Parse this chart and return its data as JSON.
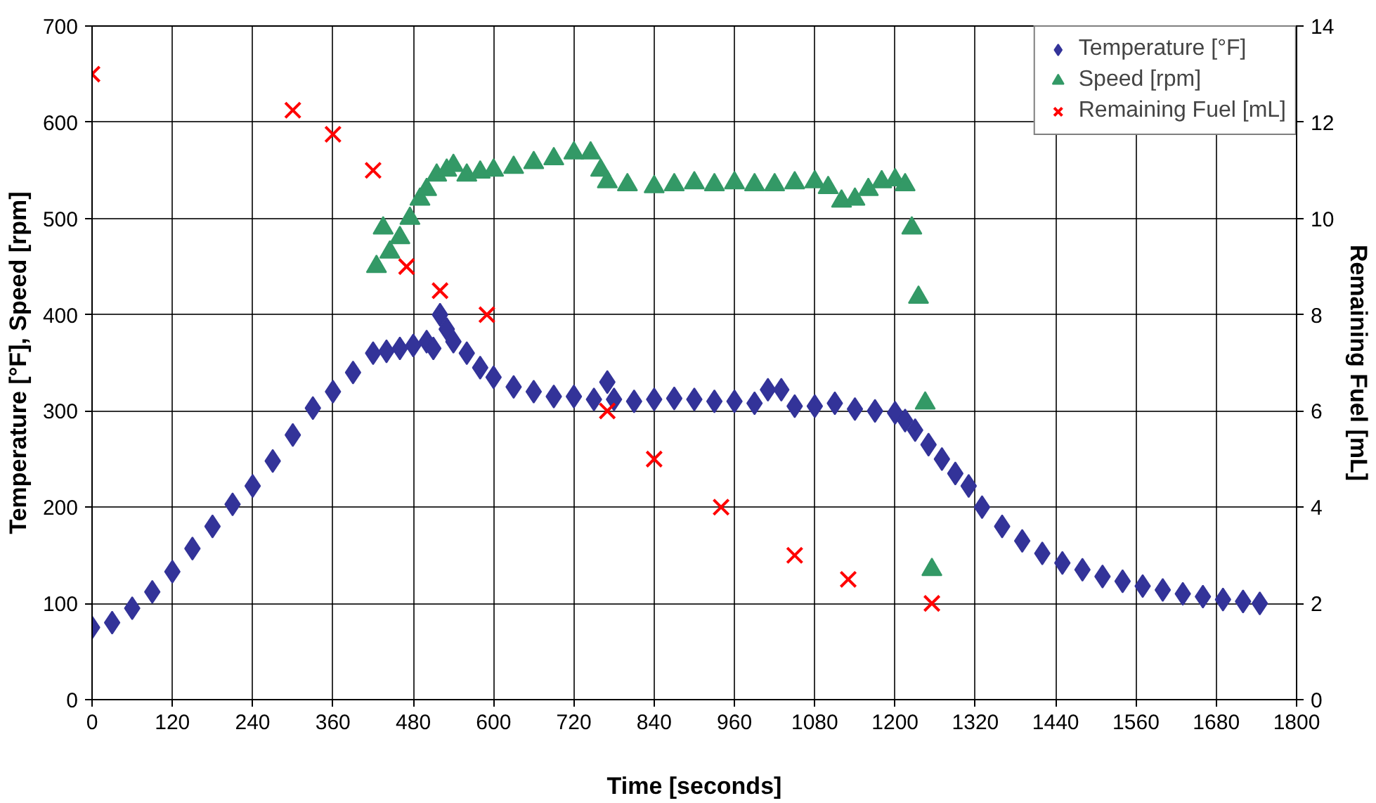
{
  "chart_data": {
    "type": "scatter",
    "xlabel": "Time [seconds]",
    "ylabel": "Temperature [°F], Speed [rpm]",
    "y2label": "Remaining Fuel [mL]",
    "xlim": [
      0,
      1800
    ],
    "xticks": [
      0,
      120,
      240,
      360,
      480,
      600,
      720,
      840,
      960,
      1080,
      1200,
      1320,
      1440,
      1560,
      1680,
      1800
    ],
    "ylim": [
      0,
      700
    ],
    "yticks": [
      0,
      100,
      200,
      300,
      400,
      500,
      600,
      700
    ],
    "y2lim": [
      0,
      14
    ],
    "y2ticks": [
      0,
      2,
      4,
      6,
      8,
      10,
      12,
      14
    ],
    "grid": true,
    "legend": "top right",
    "series": [
      {
        "name": "Temperature [°F]",
        "color": "#333399",
        "marker": "diamond",
        "x": [
          0,
          30,
          60,
          90,
          120,
          150,
          180,
          210,
          240,
          270,
          300,
          330,
          360,
          390,
          420,
          440,
          460,
          480,
          500,
          510,
          520,
          530,
          540,
          560,
          580,
          600,
          630,
          660,
          690,
          720,
          750,
          770,
          780,
          810,
          840,
          870,
          900,
          930,
          960,
          990,
          1010,
          1030,
          1050,
          1080,
          1110,
          1140,
          1170,
          1200,
          1215,
          1230,
          1250,
          1270,
          1290,
          1310,
          1330,
          1360,
          1390,
          1420,
          1450,
          1480,
          1510,
          1540,
          1570,
          1600,
          1630,
          1660,
          1690,
          1720,
          1745
        ],
        "values": [
          75,
          80,
          95,
          112,
          133,
          157,
          180,
          203,
          222,
          248,
          275,
          303,
          320,
          340,
          360,
          362,
          365,
          368,
          372,
          365,
          400,
          385,
          372,
          360,
          345,
          335,
          325,
          320,
          315,
          315,
          312,
          330,
          312,
          310,
          312,
          313,
          312,
          310,
          310,
          308,
          322,
          322,
          305,
          305,
          308,
          302,
          300,
          298,
          290,
          280,
          265,
          250,
          235,
          222,
          200,
          180,
          165,
          152,
          142,
          135,
          128,
          123,
          118,
          114,
          110,
          107,
          104,
          102,
          100
        ]
      },
      {
        "name": "Speed [rpm]",
        "color": "#339966",
        "marker": "triangle",
        "x": [
          425,
          435,
          445,
          460,
          475,
          490,
          500,
          515,
          530,
          540,
          560,
          580,
          600,
          630,
          660,
          690,
          720,
          745,
          760,
          770,
          800,
          840,
          870,
          900,
          930,
          960,
          990,
          1020,
          1050,
          1080,
          1100,
          1120,
          1140,
          1160,
          1180,
          1200,
          1215,
          1225,
          1235,
          1245,
          1255
        ],
        "values": [
          450,
          490,
          465,
          480,
          500,
          520,
          530,
          545,
          550,
          555,
          545,
          548,
          550,
          553,
          558,
          562,
          568,
          568,
          550,
          538,
          535,
          533,
          535,
          537,
          535,
          537,
          535,
          535,
          537,
          538,
          532,
          518,
          520,
          530,
          538,
          540,
          535,
          490,
          418,
          308,
          135
        ]
      },
      {
        "name": "Remaining Fuel [mL]",
        "color": "#ff0000",
        "marker": "x",
        "axis": "y2",
        "x": [
          0,
          300,
          360,
          420,
          470,
          520,
          590,
          770,
          840,
          940,
          1050,
          1130,
          1255
        ],
        "values": [
          13,
          12.25,
          11.75,
          11,
          9,
          8.5,
          8,
          6,
          5,
          4,
          3,
          2.5,
          2
        ]
      }
    ]
  }
}
